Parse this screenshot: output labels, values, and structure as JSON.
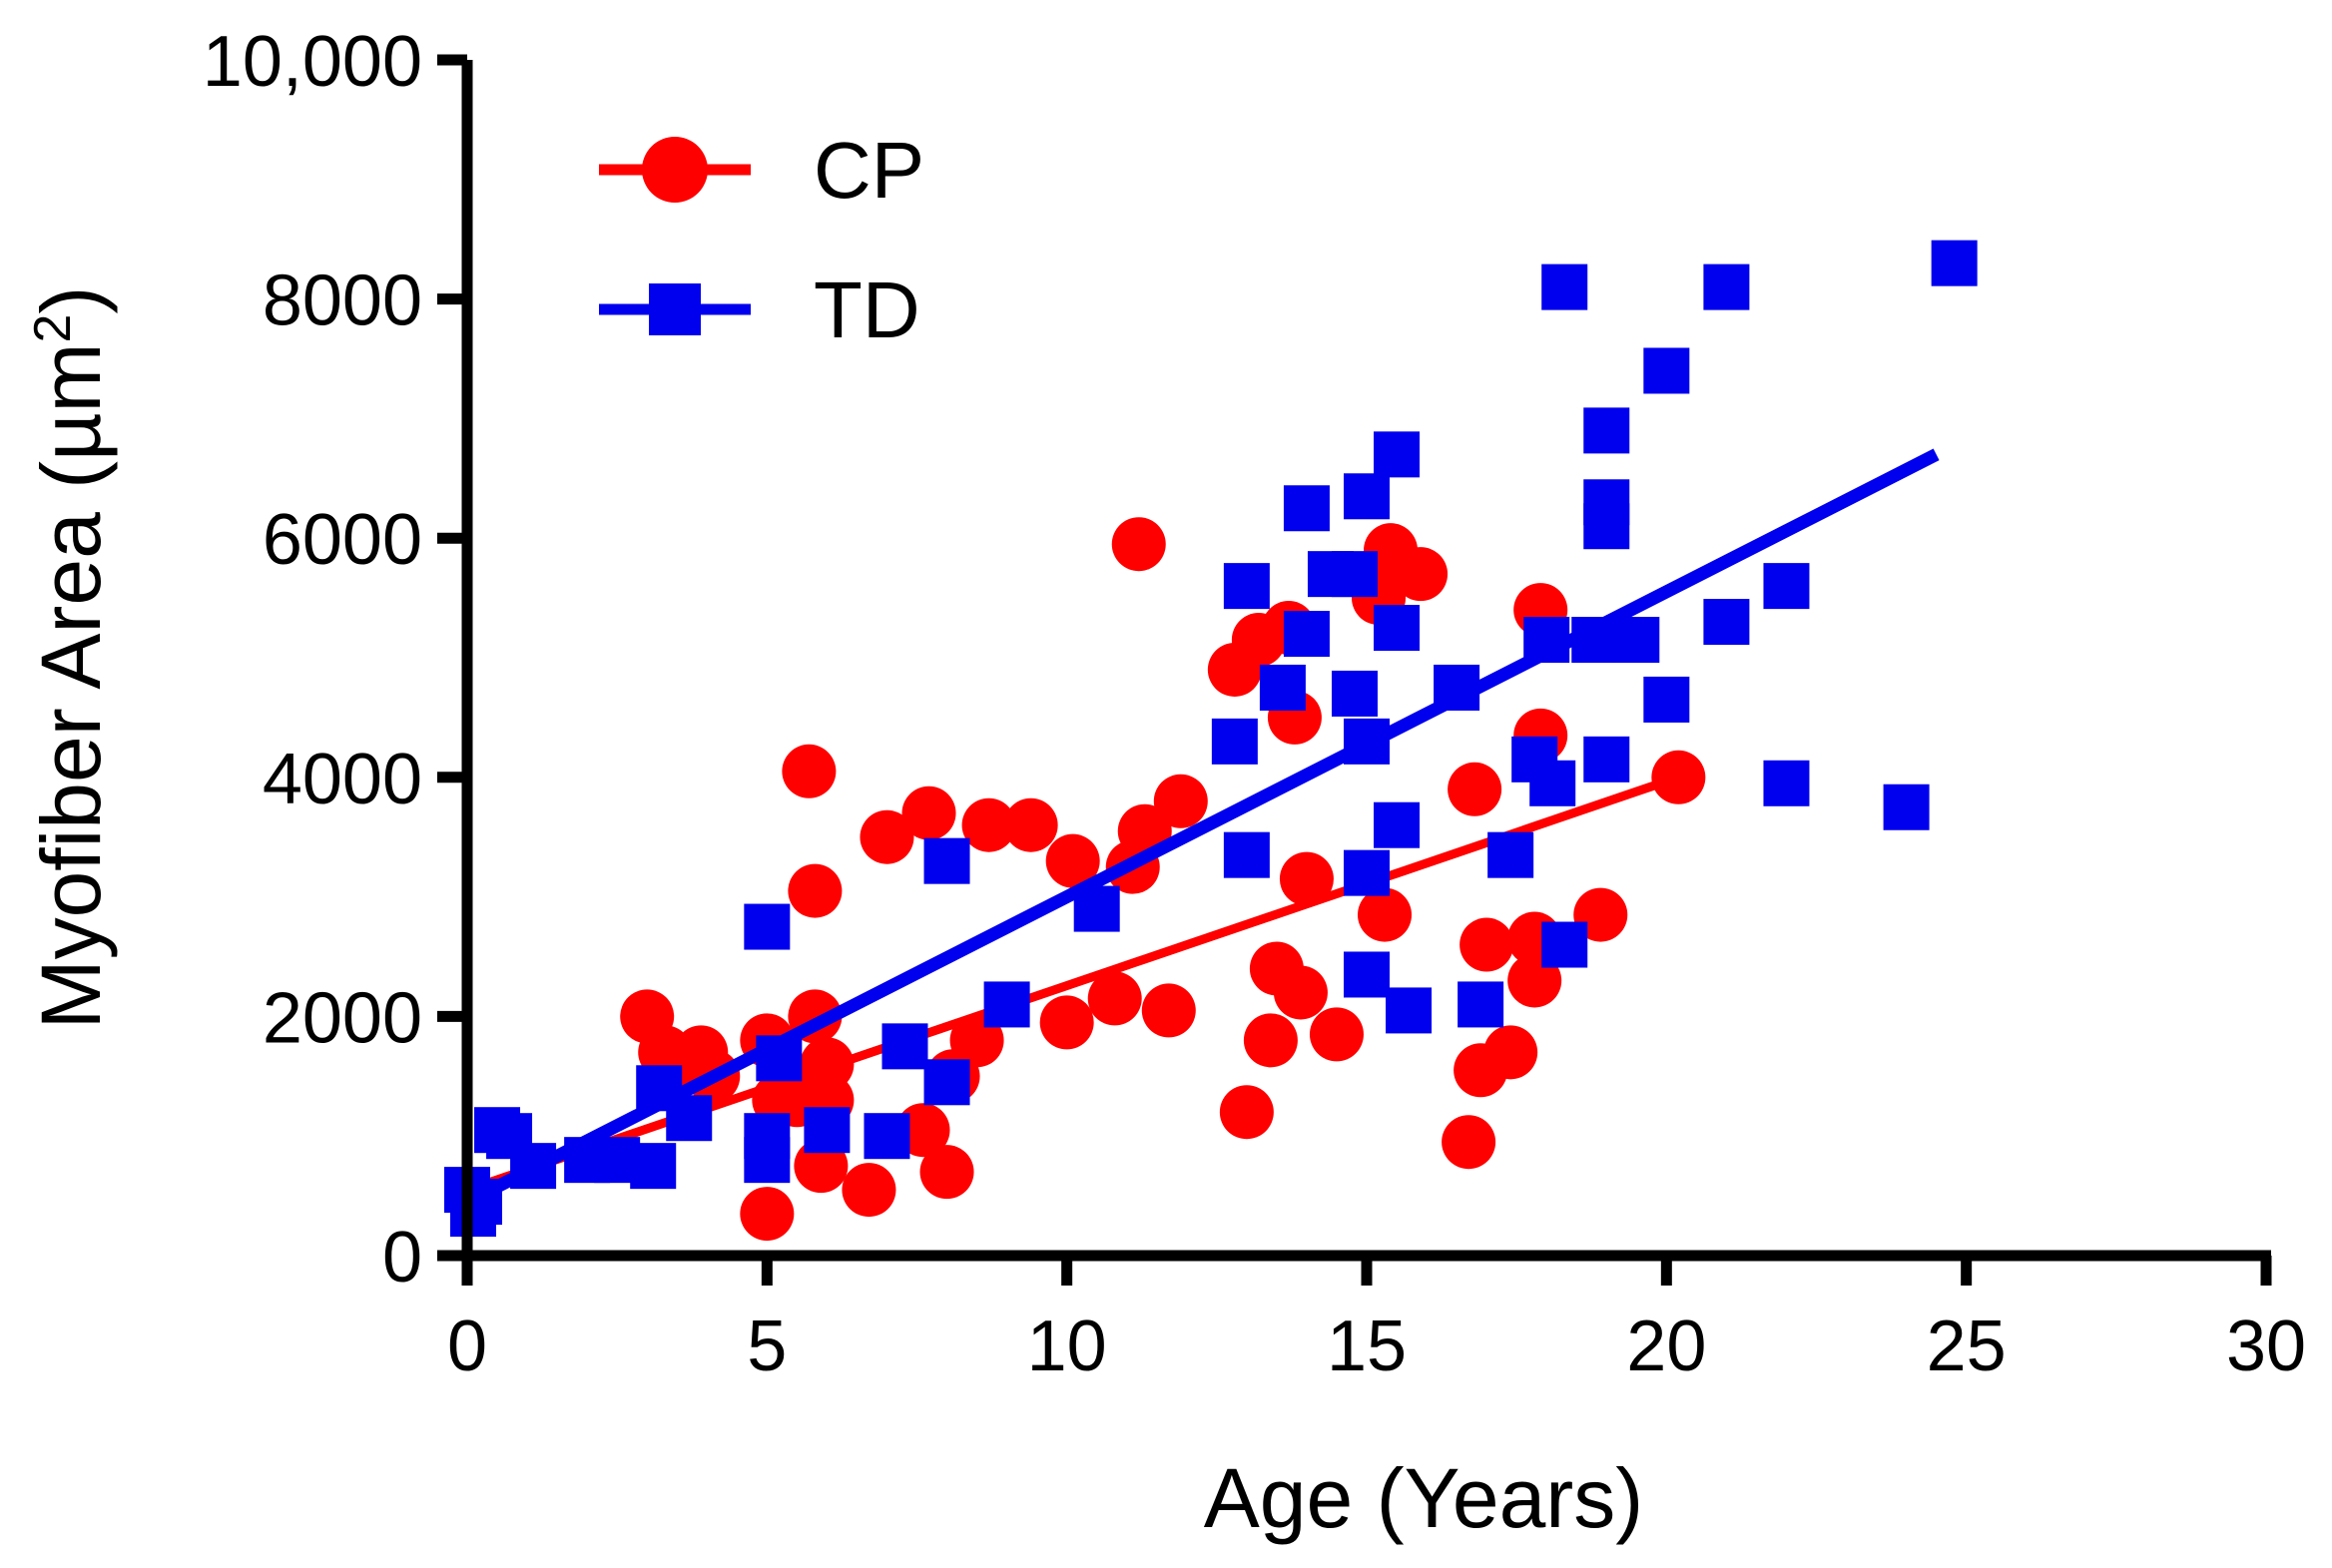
{
  "chart_data": {
    "type": "scatter",
    "title": "",
    "xlabel": "Age (Years)",
    "ylabel_main": "Myofiber Area (µm",
    "ylabel_sup": "2",
    "ylabel_end": ")",
    "xlim": [
      0,
      30
    ],
    "ylim": [
      0,
      10000
    ],
    "xticks": [
      0,
      5,
      10,
      15,
      20,
      25,
      30
    ],
    "xtick_labels": [
      "0",
      "5",
      "10",
      "15",
      "20",
      "25",
      "30"
    ],
    "yticks": [
      0,
      2000,
      4000,
      6000,
      8000,
      10000
    ],
    "ytick_labels": [
      "0",
      "2000",
      "4000",
      "6000",
      "8000",
      "10,000"
    ],
    "grid": false,
    "legend_position": "top-left",
    "series": [
      {
        "name": "CP",
        "color": "#ff0000",
        "marker": "circle",
        "fit_line": {
          "x": [
            0.3,
            20.2
          ],
          "y": [
            600,
            4000
          ]
        },
        "points": [
          [
            3.0,
            2000
          ],
          [
            3.3,
            1700
          ],
          [
            3.6,
            1600
          ],
          [
            3.9,
            1700
          ],
          [
            4.1,
            1500
          ],
          [
            5.0,
            1800
          ],
          [
            5.0,
            350
          ],
          [
            5.2,
            1300
          ],
          [
            5.5,
            1300
          ],
          [
            5.7,
            4050
          ],
          [
            5.8,
            2000
          ],
          [
            5.8,
            3050
          ],
          [
            5.9,
            750
          ],
          [
            6.0,
            1600
          ],
          [
            6.0,
            1300
          ],
          [
            6.7,
            550
          ],
          [
            7.0,
            3500
          ],
          [
            7.6,
            1050
          ],
          [
            7.7,
            3700
          ],
          [
            8.0,
            700
          ],
          [
            8.1,
            1500
          ],
          [
            8.5,
            1800
          ],
          [
            8.7,
            3600
          ],
          [
            9.4,
            3600
          ],
          [
            10.0,
            1950
          ],
          [
            10.1,
            3300
          ],
          [
            10.8,
            2150
          ],
          [
            11.1,
            3250
          ],
          [
            11.2,
            5950
          ],
          [
            11.3,
            3550
          ],
          [
            11.7,
            2050
          ],
          [
            11.9,
            3800
          ],
          [
            12.8,
            4900
          ],
          [
            13.0,
            1200
          ],
          [
            13.2,
            5150
          ],
          [
            13.4,
            1800
          ],
          [
            13.5,
            2400
          ],
          [
            13.7,
            5250
          ],
          [
            13.8,
            4500
          ],
          [
            13.9,
            2200
          ],
          [
            14.0,
            3150
          ],
          [
            14.5,
            1850
          ],
          [
            15.2,
            5500
          ],
          [
            15.3,
            2850
          ],
          [
            15.4,
            5900
          ],
          [
            15.9,
            5700
          ],
          [
            16.7,
            950
          ],
          [
            16.8,
            3900
          ],
          [
            16.9,
            1550
          ],
          [
            17.0,
            2600
          ],
          [
            17.4,
            1700
          ],
          [
            17.8,
            2650
          ],
          [
            17.8,
            2300
          ],
          [
            17.9,
            5400
          ],
          [
            17.9,
            4350
          ],
          [
            18.9,
            2850
          ],
          [
            20.2,
            4000
          ]
        ]
      },
      {
        "name": "TD",
        "color": "#0000ee",
        "marker": "square",
        "fit_line": {
          "x": [
            0.2,
            24.5
          ],
          "y": [
            500,
            6700
          ]
        },
        "points": [
          [
            0.0,
            550
          ],
          [
            0.1,
            350
          ],
          [
            0.2,
            450
          ],
          [
            0.5,
            1050
          ],
          [
            0.7,
            1000
          ],
          [
            1.1,
            750
          ],
          [
            2.0,
            800
          ],
          [
            2.5,
            800
          ],
          [
            3.1,
            750
          ],
          [
            3.2,
            1400
          ],
          [
            3.7,
            1150
          ],
          [
            5.0,
            800
          ],
          [
            5.0,
            1000
          ],
          [
            5.0,
            2750
          ],
          [
            5.2,
            1650
          ],
          [
            6.0,
            1050
          ],
          [
            7.0,
            1000
          ],
          [
            7.3,
            1750
          ],
          [
            8.0,
            1450
          ],
          [
            8.0,
            3300
          ],
          [
            9.0,
            2100
          ],
          [
            10.5,
            2900
          ],
          [
            12.8,
            4300
          ],
          [
            13.0,
            5600
          ],
          [
            13.0,
            3350
          ],
          [
            13.6,
            4750
          ],
          [
            14.0,
            6250
          ],
          [
            14.0,
            5200
          ],
          [
            14.4,
            5700
          ],
          [
            14.8,
            5700
          ],
          [
            14.8,
            4700
          ],
          [
            15.0,
            6350
          ],
          [
            15.0,
            4300
          ],
          [
            15.0,
            3200
          ],
          [
            15.0,
            2350
          ],
          [
            15.5,
            6700
          ],
          [
            15.5,
            5250
          ],
          [
            15.5,
            3600
          ],
          [
            15.7,
            2050
          ],
          [
            16.5,
            4750
          ],
          [
            16.9,
            2100
          ],
          [
            17.4,
            3350
          ],
          [
            17.8,
            4150
          ],
          [
            18.0,
            5150
          ],
          [
            18.1,
            3950
          ],
          [
            18.3,
            8100
          ],
          [
            18.3,
            2600
          ],
          [
            18.8,
            5150
          ],
          [
            19.0,
            6900
          ],
          [
            19.0,
            6300
          ],
          [
            19.0,
            6100
          ],
          [
            19.0,
            4150
          ],
          [
            19.5,
            5150
          ],
          [
            20.0,
            7400
          ],
          [
            20.0,
            4650
          ],
          [
            21.0,
            8100
          ],
          [
            21.0,
            5300
          ],
          [
            22.0,
            5600
          ],
          [
            22.0,
            3950
          ],
          [
            24.0,
            3750
          ],
          [
            24.8,
            8300
          ]
        ]
      }
    ]
  }
}
